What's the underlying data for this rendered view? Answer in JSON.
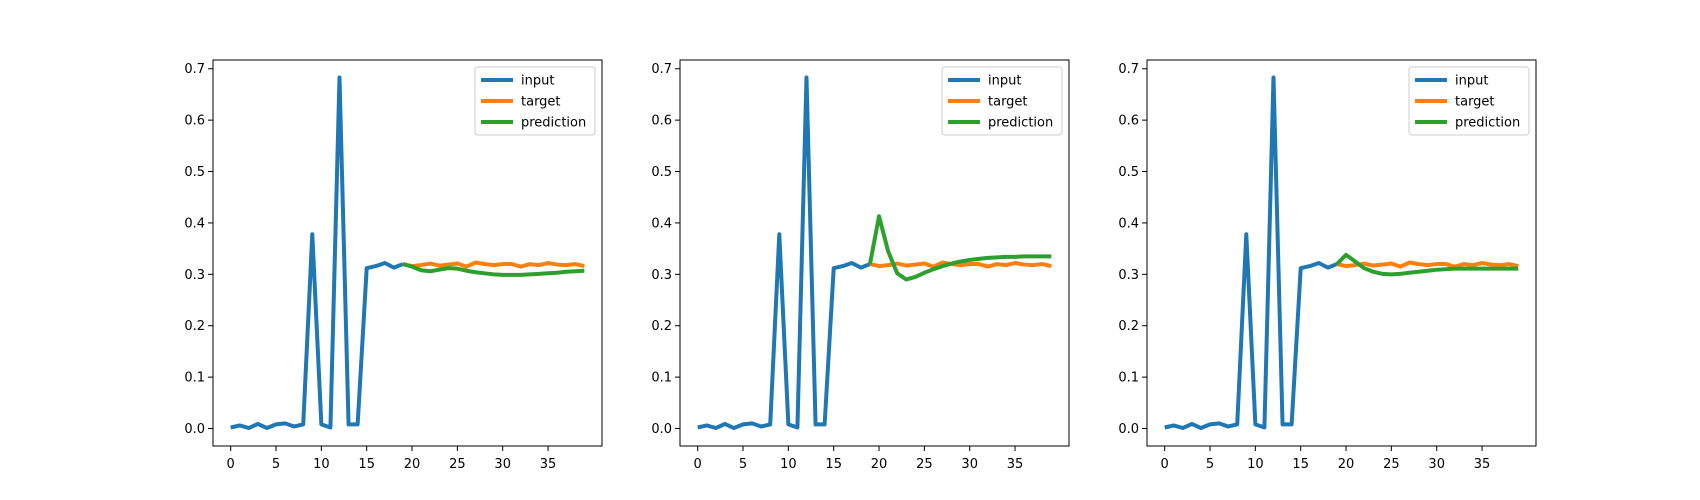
{
  "chart_data": [
    {
      "type": "line",
      "title": "",
      "xlabel": "",
      "ylabel": "",
      "xlim": [
        -1.95,
        40.95
      ],
      "ylim": [
        -0.034,
        0.717
      ],
      "xticks": [
        0,
        5,
        10,
        15,
        20,
        25,
        30,
        35
      ],
      "yticks": [
        0.0,
        0.1,
        0.2,
        0.3,
        0.4,
        0.5,
        0.6,
        0.7
      ],
      "legend_position": "upper-right",
      "series": [
        {
          "name": "input",
          "color": "#1f77b4",
          "x": [
            0,
            1,
            2,
            3,
            4,
            5,
            6,
            7,
            8,
            9,
            10,
            11,
            12,
            13,
            14,
            15,
            16,
            17,
            18,
            19
          ],
          "values": [
            0.002,
            0.006,
            0.001,
            0.009,
            0.001,
            0.008,
            0.01,
            0.004,
            0.008,
            0.378,
            0.008,
            0.002,
            0.683,
            0.008,
            0.008,
            0.312,
            0.316,
            0.322,
            0.313,
            0.32
          ]
        },
        {
          "name": "target",
          "color": "#ff7f0e",
          "x": [
            19,
            20,
            21,
            22,
            23,
            24,
            25,
            26,
            27,
            28,
            29,
            30,
            31,
            32,
            33,
            34,
            35,
            36,
            37,
            38,
            39
          ],
          "values": [
            0.32,
            0.316,
            0.318,
            0.321,
            0.317,
            0.319,
            0.321,
            0.315,
            0.323,
            0.32,
            0.318,
            0.32,
            0.32,
            0.315,
            0.32,
            0.318,
            0.322,
            0.319,
            0.318,
            0.32,
            0.316
          ]
        },
        {
          "name": "prediction",
          "color": "#2ca02c",
          "x": [
            19,
            20,
            21,
            22,
            23,
            24,
            25,
            26,
            27,
            28,
            29,
            30,
            31,
            32,
            33,
            34,
            35,
            36,
            37,
            38,
            39
          ],
          "values": [
            0.32,
            0.315,
            0.308,
            0.306,
            0.309,
            0.312,
            0.311,
            0.307,
            0.304,
            0.302,
            0.3,
            0.299,
            0.299,
            0.299,
            0.3,
            0.301,
            0.302,
            0.303,
            0.305,
            0.306,
            0.307
          ]
        }
      ]
    },
    {
      "type": "line",
      "title": "",
      "xlabel": "",
      "ylabel": "",
      "xlim": [
        -1.95,
        40.95
      ],
      "ylim": [
        -0.034,
        0.717
      ],
      "xticks": [
        0,
        5,
        10,
        15,
        20,
        25,
        30,
        35
      ],
      "yticks": [
        0.0,
        0.1,
        0.2,
        0.3,
        0.4,
        0.5,
        0.6,
        0.7
      ],
      "legend_position": "upper-right",
      "series": [
        {
          "name": "input",
          "color": "#1f77b4",
          "x": [
            0,
            1,
            2,
            3,
            4,
            5,
            6,
            7,
            8,
            9,
            10,
            11,
            12,
            13,
            14,
            15,
            16,
            17,
            18,
            19
          ],
          "values": [
            0.002,
            0.006,
            0.001,
            0.009,
            0.001,
            0.008,
            0.01,
            0.004,
            0.008,
            0.378,
            0.008,
            0.002,
            0.683,
            0.008,
            0.008,
            0.312,
            0.316,
            0.322,
            0.313,
            0.32
          ]
        },
        {
          "name": "target",
          "color": "#ff7f0e",
          "x": [
            19,
            20,
            21,
            22,
            23,
            24,
            25,
            26,
            27,
            28,
            29,
            30,
            31,
            32,
            33,
            34,
            35,
            36,
            37,
            38,
            39
          ],
          "values": [
            0.32,
            0.316,
            0.318,
            0.321,
            0.317,
            0.319,
            0.321,
            0.315,
            0.323,
            0.32,
            0.318,
            0.32,
            0.32,
            0.315,
            0.32,
            0.318,
            0.322,
            0.319,
            0.318,
            0.32,
            0.316
          ]
        },
        {
          "name": "prediction",
          "color": "#2ca02c",
          "x": [
            19,
            20,
            21,
            22,
            23,
            24,
            25,
            26,
            27,
            28,
            29,
            30,
            31,
            32,
            33,
            34,
            35,
            36,
            37,
            38,
            39
          ],
          "values": [
            0.32,
            0.413,
            0.345,
            0.302,
            0.29,
            0.295,
            0.303,
            0.31,
            0.316,
            0.321,
            0.325,
            0.328,
            0.33,
            0.332,
            0.333,
            0.334,
            0.334,
            0.335,
            0.335,
            0.335,
            0.335
          ]
        }
      ]
    },
    {
      "type": "line",
      "title": "",
      "xlabel": "",
      "ylabel": "",
      "xlim": [
        -1.95,
        40.95
      ],
      "ylim": [
        -0.034,
        0.717
      ],
      "xticks": [
        0,
        5,
        10,
        15,
        20,
        25,
        30,
        35
      ],
      "yticks": [
        0.0,
        0.1,
        0.2,
        0.3,
        0.4,
        0.5,
        0.6,
        0.7
      ],
      "legend_position": "upper-right",
      "series": [
        {
          "name": "input",
          "color": "#1f77b4",
          "x": [
            0,
            1,
            2,
            3,
            4,
            5,
            6,
            7,
            8,
            9,
            10,
            11,
            12,
            13,
            14,
            15,
            16,
            17,
            18,
            19
          ],
          "values": [
            0.002,
            0.006,
            0.001,
            0.009,
            0.001,
            0.008,
            0.01,
            0.004,
            0.008,
            0.378,
            0.008,
            0.002,
            0.683,
            0.008,
            0.008,
            0.312,
            0.316,
            0.322,
            0.313,
            0.32
          ]
        },
        {
          "name": "target",
          "color": "#ff7f0e",
          "x": [
            19,
            20,
            21,
            22,
            23,
            24,
            25,
            26,
            27,
            28,
            29,
            30,
            31,
            32,
            33,
            34,
            35,
            36,
            37,
            38,
            39
          ],
          "values": [
            0.32,
            0.316,
            0.318,
            0.321,
            0.317,
            0.319,
            0.321,
            0.315,
            0.323,
            0.32,
            0.318,
            0.32,
            0.32,
            0.315,
            0.32,
            0.318,
            0.322,
            0.319,
            0.318,
            0.32,
            0.316
          ]
        },
        {
          "name": "prediction",
          "color": "#2ca02c",
          "x": [
            19,
            20,
            21,
            22,
            23,
            24,
            25,
            26,
            27,
            28,
            29,
            30,
            31,
            32,
            33,
            34,
            35,
            36,
            37,
            38,
            39
          ],
          "values": [
            0.32,
            0.338,
            0.325,
            0.312,
            0.305,
            0.301,
            0.3,
            0.301,
            0.303,
            0.305,
            0.307,
            0.309,
            0.31,
            0.311,
            0.311,
            0.311,
            0.311,
            0.311,
            0.311,
            0.311,
            0.311
          ]
        }
      ]
    }
  ]
}
